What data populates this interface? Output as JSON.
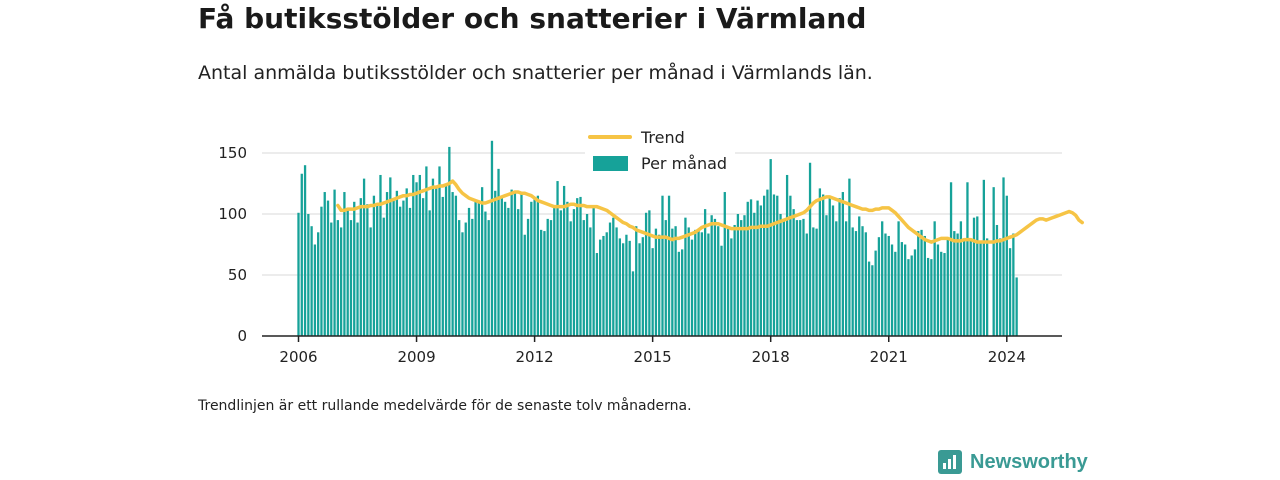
{
  "header": {
    "title": "Få butiksstölder och snatterier i Värmland",
    "subtitle": "Antal anmälda butiksstölder och snatterier per månad i Värmlands län."
  },
  "footnote": "Trendlinjen är ett rullande medelvärde för de senaste tolv månaderna.",
  "brand": {
    "name": "Newsworthy",
    "icon": "newsworthy-logo-icon"
  },
  "colors": {
    "bars": "#16a299",
    "trend": "#f6c445",
    "grid": "#d9d9d9",
    "axis": "#222222"
  },
  "chart_data": {
    "type": "bar",
    "start": "2006-01",
    "ylim": [
      0,
      150
    ],
    "yticks": [
      0,
      50,
      100,
      150
    ],
    "xticks": [
      "2006",
      "2009",
      "2012",
      "2015",
      "2018",
      "2021",
      "2024"
    ],
    "grid": true,
    "legend_position": "top-center",
    "series": [
      {
        "name": "Per månad",
        "type": "bar",
        "values": [
          101,
          133,
          140,
          100,
          90,
          75,
          85,
          106,
          118,
          111,
          93,
          120,
          95,
          89,
          118,
          103,
          95,
          110,
          93,
          113,
          129,
          108,
          89,
          115,
          108,
          132,
          97,
          118,
          130,
          111,
          119,
          106,
          111,
          121,
          105,
          132,
          126,
          132,
          113,
          139,
          103,
          129,
          121,
          139,
          114,
          125,
          155,
          118,
          115,
          95,
          85,
          93,
          105,
          96,
          110,
          109,
          122,
          102,
          95,
          160,
          119,
          137,
          115,
          110,
          105,
          120,
          118,
          104,
          118,
          83,
          96,
          110,
          113,
          115,
          87,
          86,
          96,
          95,
          105,
          127,
          103,
          123,
          110,
          94,
          104,
          113,
          114,
          95,
          100,
          89,
          105,
          68,
          79,
          82,
          85,
          93,
          97,
          89,
          80,
          76,
          83,
          78,
          53,
          90,
          76,
          81,
          101,
          103,
          72,
          88,
          83,
          115,
          95,
          115,
          88,
          90,
          69,
          71,
          97,
          89,
          79,
          87,
          87,
          85,
          104,
          84,
          99,
          96,
          90,
          74,
          118,
          88,
          80,
          91,
          100,
          95,
          99,
          110,
          112,
          101,
          111,
          107,
          115,
          120,
          145,
          116,
          115,
          100,
          95,
          132,
          115,
          104,
          95,
          95,
          96,
          84,
          142,
          89,
          88,
          121,
          116,
          99,
          114,
          107,
          94,
          113,
          118,
          94,
          129,
          89,
          86,
          98,
          90,
          85,
          61,
          58,
          70,
          81,
          94,
          84,
          82,
          75,
          69,
          94,
          77,
          75,
          63,
          66,
          71,
          86,
          87,
          82,
          64,
          63,
          94,
          75,
          69,
          68,
          80,
          126,
          86,
          84,
          94,
          78,
          126,
          80,
          97,
          98,
          78,
          128,
          80,
          0,
          122,
          91,
          80,
          130,
          115,
          72,
          84,
          48
        ]
      },
      {
        "name": "Trend",
        "type": "line",
        "start_index": 12,
        "values": [
          107,
          103,
          103,
          104,
          104,
          104,
          105,
          106,
          106,
          106,
          107,
          107,
          108,
          108,
          109,
          110,
          111,
          112,
          113,
          114,
          115,
          115,
          116,
          116,
          117,
          118,
          119,
          120,
          121,
          122,
          122,
          123,
          123,
          124,
          125,
          127,
          124,
          120,
          117,
          115,
          113,
          112,
          111,
          110,
          109,
          109,
          110,
          111,
          112,
          113,
          114,
          115,
          116,
          117,
          118,
          118,
          117,
          117,
          116,
          115,
          113,
          111,
          110,
          109,
          108,
          107,
          106,
          106,
          106,
          106,
          107,
          108,
          108,
          107,
          107,
          107,
          106,
          106,
          106,
          106,
          105,
          104,
          103,
          101,
          99,
          97,
          95,
          93,
          92,
          90,
          89,
          87,
          86,
          85,
          84,
          83,
          82,
          81,
          81,
          81,
          81,
          80,
          79,
          80,
          80,
          81,
          82,
          83,
          84,
          85,
          87,
          89,
          90,
          91,
          92,
          92,
          92,
          91,
          90,
          89,
          88,
          88,
          88,
          88,
          88,
          88,
          89,
          89,
          89,
          90,
          90,
          90,
          91,
          92,
          93,
          94,
          95,
          96,
          97,
          98,
          99,
          100,
          101,
          103,
          106,
          109,
          111,
          112,
          113,
          114,
          114,
          113,
          112,
          111,
          110,
          109,
          108,
          107,
          106,
          105,
          104,
          104,
          103,
          103,
          104,
          104,
          105,
          105,
          105,
          103,
          101,
          98,
          95,
          92,
          89,
          87,
          85,
          83,
          81,
          79,
          78,
          77,
          78,
          79,
          80,
          80,
          80,
          79,
          78,
          78,
          78,
          79,
          79,
          79,
          78,
          77,
          77,
          77,
          77,
          77,
          77,
          78,
          78,
          79,
          80,
          81,
          82,
          83,
          85,
          87,
          89,
          91,
          93,
          95,
          96,
          96,
          95,
          96,
          97,
          98,
          99,
          100,
          101,
          102,
          101,
          99,
          95,
          93
        ]
      }
    ]
  }
}
